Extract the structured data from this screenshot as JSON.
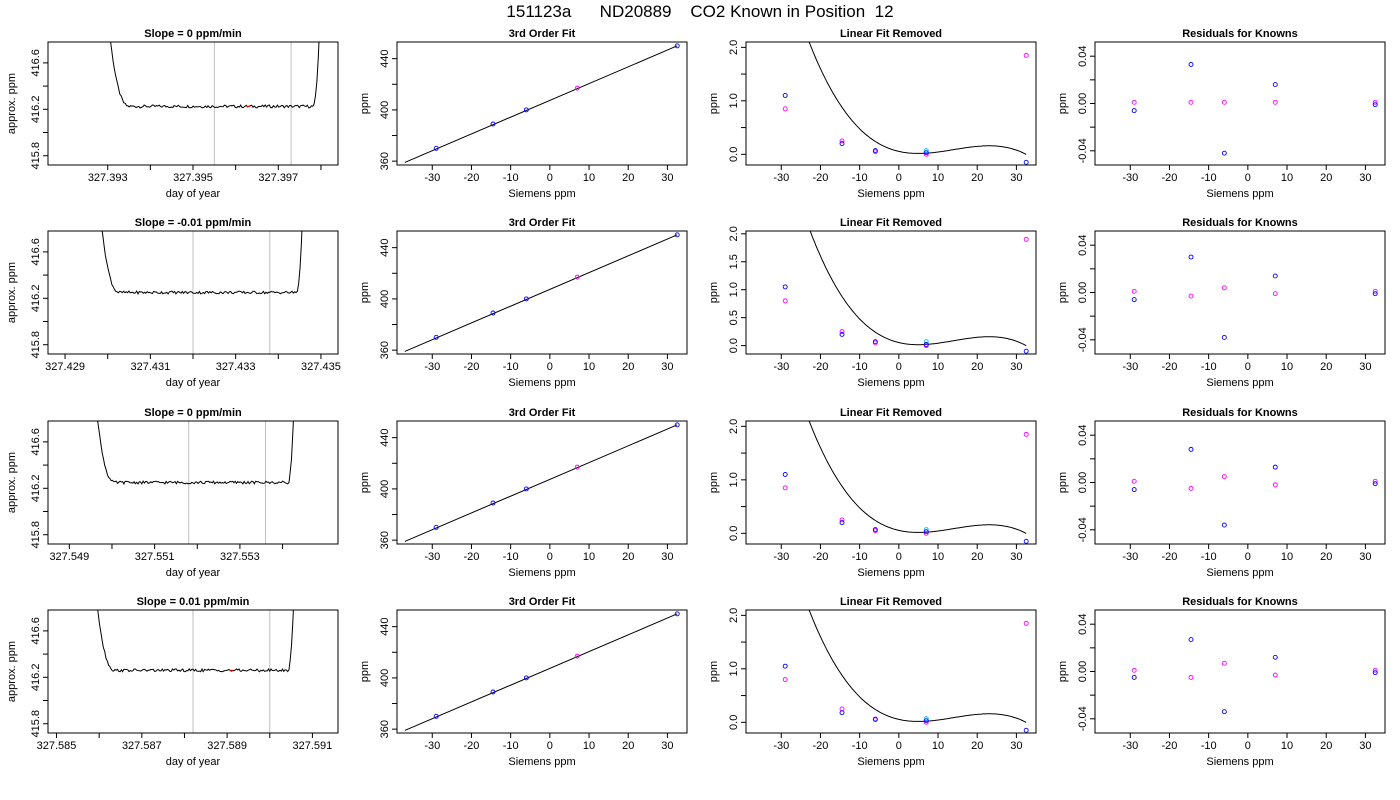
{
  "figure_title": "151123a      ND20889    CO2 Known in Position  12",
  "chart_data": [
    {
      "id": "r1c1",
      "type": "line",
      "title": "Slope =  0  ppm/min",
      "xlabel": "day of year",
      "ylabel": "approx. ppm",
      "xlim": [
        327.3916,
        327.3984
      ],
      "ylim": [
        415.72,
        416.78
      ],
      "xticks": [
        327.393,
        327.394,
        327.395,
        327.396,
        327.397,
        327.398
      ],
      "xtick_labels": [
        "327.393",
        "",
        "327.395",
        "",
        "327.397",
        ""
      ],
      "yticks": [
        415.8,
        416.0,
        416.2,
        416.4,
        416.6
      ],
      "ytick_labels": [
        "415.8",
        "",
        "416.2",
        "",
        "416.6"
      ],
      "vlines": [
        327.3955,
        327.3973
      ],
      "trace_start": 327.3929,
      "trace_end": 327.398,
      "baseline": 416.225,
      "red_mark": 327.3963,
      "colors": {
        "vline": "#bfbfbf",
        "trace": "#000000",
        "mark": "#ff0000"
      }
    },
    {
      "id": "r1c2",
      "type": "line",
      "title": "3rd Order Fit",
      "xlabel": "Siemens ppm",
      "ylabel": "ppm",
      "xlim": [
        -39,
        35
      ],
      "ylim": [
        357,
        453
      ],
      "xticks": [
        -30,
        -20,
        -10,
        0,
        10,
        20,
        30
      ],
      "xtick_labels": [
        "-30",
        "-20",
        "-10",
        "0",
        "10",
        "20",
        "30"
      ],
      "yticks": [
        360,
        380,
        400,
        420,
        440
      ],
      "ytick_labels": [
        "360",
        "",
        "400",
        "",
        "440"
      ],
      "line": [
        [
          -37,
          359
        ],
        [
          32.5,
          450
        ]
      ],
      "points_blue": [
        [
          -29,
          370
        ],
        [
          -14.5,
          389
        ],
        [
          -6,
          400
        ],
        [
          32.5,
          450
        ]
      ],
      "points_magenta": [
        [
          7,
          417
        ]
      ],
      "points_cyan": []
    },
    {
      "id": "r1c3",
      "type": "scatter",
      "title": "Linear Fit Removed",
      "xlabel": "Siemens ppm",
      "ylabel": "ppm",
      "xlim": [
        -39,
        35
      ],
      "ylim": [
        -0.2,
        2.1
      ],
      "xticks": [
        -30,
        -20,
        -10,
        0,
        10,
        20,
        30
      ],
      "xtick_labels": [
        "-30",
        "-20",
        "-10",
        "0",
        "10",
        "20",
        "30"
      ],
      "yticks": [
        0,
        0.5,
        1.0,
        1.5,
        2.0
      ],
      "ytick_labels": [
        "0.0",
        "",
        "1.0",
        "",
        "2.0"
      ],
      "curve": [
        -0.1484,
        0.0039,
        0.0036,
        0.0
      ],
      "points_blue": [
        [
          -29,
          1.1
        ],
        [
          -14.5,
          0.2
        ],
        [
          -6,
          0.07
        ],
        [
          7,
          0.03
        ],
        [
          32.5,
          -0.15
        ]
      ],
      "points_magenta": [
        [
          -29,
          0.85
        ],
        [
          -14.5,
          0.25
        ],
        [
          -6,
          0.05
        ],
        [
          7,
          0.0
        ],
        [
          32.5,
          1.85
        ]
      ],
      "points_cyan": [
        [
          7,
          0.07
        ]
      ]
    },
    {
      "id": "r1c4",
      "type": "scatter",
      "title": "Residuals for Knowns",
      "xlabel": "Siemens ppm",
      "ylabel": "ppm",
      "xlim": [
        -39,
        35
      ],
      "ylim": [
        -0.052,
        0.052
      ],
      "xticks": [
        -30,
        -20,
        -10,
        0,
        10,
        20,
        30
      ],
      "xtick_labels": [
        "-30",
        "-20",
        "-10",
        "0",
        "10",
        "20",
        "30"
      ],
      "yticks": [
        -0.04,
        -0.02,
        0,
        0.02,
        0.04
      ],
      "ytick_labels": [
        "-0.04",
        "",
        "0.00",
        "",
        "0.04"
      ],
      "points_blue": [
        [
          -29,
          -0.006
        ],
        [
          -14.5,
          0.033
        ],
        [
          -6,
          -0.042
        ],
        [
          7,
          0.016
        ],
        [
          32.5,
          -0.001
        ]
      ],
      "points_magenta": [
        [
          -29,
          0.001
        ],
        [
          -14.5,
          0.001
        ],
        [
          -6,
          0.001
        ],
        [
          7,
          0.001
        ],
        [
          32.5,
          0.001
        ]
      ],
      "points_cyan": []
    },
    {
      "id": "r2c1",
      "type": "line",
      "title": "Slope =  -0.01  ppm/min",
      "xlabel": "day of year",
      "ylabel": "approx. ppm",
      "xlim": [
        327.4286,
        327.4354
      ],
      "ylim": [
        415.72,
        416.78
      ],
      "xticks": [
        327.429,
        327.43,
        327.431,
        327.432,
        327.433,
        327.434,
        327.435
      ],
      "xtick_labels": [
        "327.429",
        "",
        "327.431",
        "",
        "327.433",
        "",
        "327.435"
      ],
      "yticks": [
        415.8,
        416.0,
        416.2,
        416.4,
        416.6
      ],
      "ytick_labels": [
        "415.8",
        "",
        "416.2",
        "",
        "416.6"
      ],
      "vlines": [
        327.432,
        327.4338
      ],
      "trace_start": 327.4297,
      "trace_end": 327.4346,
      "baseline": 416.25,
      "red_mark": null,
      "colors": {
        "vline": "#bfbfbf",
        "trace": "#000000",
        "mark": "#ff0000"
      }
    },
    {
      "id": "r2c2",
      "type": "line",
      "title": "3rd Order Fit",
      "xlabel": "Siemens ppm",
      "ylabel": "ppm",
      "xlim": [
        -39,
        35
      ],
      "ylim": [
        357,
        453
      ],
      "xticks": [
        -30,
        -20,
        -10,
        0,
        10,
        20,
        30
      ],
      "xtick_labels": [
        "-30",
        "-20",
        "-10",
        "0",
        "10",
        "20",
        "30"
      ],
      "yticks": [
        360,
        380,
        400,
        420,
        440
      ],
      "ytick_labels": [
        "360",
        "",
        "400",
        "",
        "440"
      ],
      "line": [
        [
          -37,
          359
        ],
        [
          32.5,
          450
        ]
      ],
      "points_blue": [
        [
          -29,
          370
        ],
        [
          -14.5,
          389
        ],
        [
          -6,
          400
        ],
        [
          32.5,
          450
        ]
      ],
      "points_magenta": [
        [
          7,
          417
        ]
      ],
      "points_cyan": []
    },
    {
      "id": "r2c3",
      "type": "scatter",
      "title": "Linear Fit Removed",
      "xlabel": "Siemens ppm",
      "ylabel": "ppm",
      "xlim": [
        -39,
        35
      ],
      "ylim": [
        -0.15,
        2.05
      ],
      "xticks": [
        -30,
        -20,
        -10,
        0,
        10,
        20,
        30
      ],
      "xtick_labels": [
        "-30",
        "-20",
        "-10",
        "0",
        "10",
        "20",
        "30"
      ],
      "yticks": [
        0,
        0.5,
        1.0,
        1.5,
        2.0
      ],
      "ytick_labels": [
        "0.0",
        "0.5",
        "1.0",
        "1.5",
        "2.0"
      ],
      "curve": [
        -0.1484,
        0.0039,
        0.0036,
        0.0
      ],
      "points_blue": [
        [
          -29,
          1.05
        ],
        [
          -14.5,
          0.2
        ],
        [
          -6,
          0.07
        ],
        [
          7,
          0.02
        ],
        [
          32.5,
          -0.1
        ]
      ],
      "points_magenta": [
        [
          -29,
          0.8
        ],
        [
          -14.5,
          0.25
        ],
        [
          -6,
          0.05
        ],
        [
          7,
          0.0
        ],
        [
          32.5,
          1.9
        ]
      ],
      "points_cyan": [
        [
          7,
          0.07
        ]
      ]
    },
    {
      "id": "r2c4",
      "type": "scatter",
      "title": "Residuals for Knowns",
      "xlabel": "Siemens ppm",
      "ylabel": "ppm",
      "xlim": [
        -39,
        35
      ],
      "ylim": [
        -0.052,
        0.052
      ],
      "xticks": [
        -30,
        -20,
        -10,
        0,
        10,
        20,
        30
      ],
      "xtick_labels": [
        "-30",
        "-20",
        "-10",
        "0",
        "10",
        "20",
        "30"
      ],
      "yticks": [
        -0.04,
        -0.02,
        0,
        0.02,
        0.04
      ],
      "ytick_labels": [
        "-0.04",
        "",
        "0.00",
        "",
        "0.04"
      ],
      "points_blue": [
        [
          -29,
          -0.006
        ],
        [
          -14.5,
          0.03
        ],
        [
          -6,
          -0.038
        ],
        [
          7,
          0.014
        ],
        [
          32.5,
          -0.001
        ]
      ],
      "points_magenta": [
        [
          -29,
          0.001
        ],
        [
          -14.5,
          -0.003
        ],
        [
          -6,
          0.004
        ],
        [
          7,
          -0.001
        ],
        [
          32.5,
          0.001
        ]
      ],
      "points_cyan": []
    },
    {
      "id": "r3c1",
      "type": "line",
      "title": "Slope =  0  ppm/min",
      "xlabel": "day of year",
      "ylabel": "approx. ppm",
      "xlim": [
        327.5485,
        327.5553
      ],
      "ylim": [
        415.72,
        416.78
      ],
      "xticks": [
        327.549,
        327.55,
        327.551,
        327.552,
        327.553,
        327.554
      ],
      "xtick_labels": [
        "327.549",
        "",
        "327.551",
        "",
        "327.553",
        ""
      ],
      "yticks": [
        415.8,
        416.0,
        416.2,
        416.4,
        416.6
      ],
      "ytick_labels": [
        "415.8",
        "",
        "416.2",
        "",
        "416.6"
      ],
      "vlines": [
        327.5518,
        327.5536
      ],
      "trace_start": 327.5495,
      "trace_end": 327.5543,
      "baseline": 416.25,
      "red_mark": null,
      "colors": {
        "vline": "#bfbfbf",
        "trace": "#000000",
        "mark": "#ff0000"
      }
    },
    {
      "id": "r3c2",
      "type": "line",
      "title": "3rd Order Fit",
      "xlabel": "Siemens ppm",
      "ylabel": "ppm",
      "xlim": [
        -39,
        35
      ],
      "ylim": [
        357,
        453
      ],
      "xticks": [
        -30,
        -20,
        -10,
        0,
        10,
        20,
        30
      ],
      "xtick_labels": [
        "-30",
        "-20",
        "-10",
        "0",
        "10",
        "20",
        "30"
      ],
      "yticks": [
        360,
        380,
        400,
        420,
        440
      ],
      "ytick_labels": [
        "360",
        "",
        "400",
        "",
        "440"
      ],
      "line": [
        [
          -37,
          359
        ],
        [
          32.5,
          450
        ]
      ],
      "points_blue": [
        [
          -29,
          370
        ],
        [
          -14.5,
          389
        ],
        [
          -6,
          400
        ],
        [
          32.5,
          450
        ]
      ],
      "points_magenta": [
        [
          7,
          417
        ]
      ],
      "points_cyan": []
    },
    {
      "id": "r3c3",
      "type": "scatter",
      "title": "Linear Fit Removed",
      "xlabel": "Siemens ppm",
      "ylabel": "ppm",
      "xlim": [
        -39,
        35
      ],
      "ylim": [
        -0.2,
        2.1
      ],
      "xticks": [
        -30,
        -20,
        -10,
        0,
        10,
        20,
        30
      ],
      "xtick_labels": [
        "-30",
        "-20",
        "-10",
        "0",
        "10",
        "20",
        "30"
      ],
      "yticks": [
        0,
        0.5,
        1.0,
        1.5,
        2.0
      ],
      "ytick_labels": [
        "0.0",
        "",
        "1.0",
        "",
        "2.0"
      ],
      "curve": [
        -0.1484,
        0.0039,
        0.0036,
        0.0
      ],
      "points_blue": [
        [
          -29,
          1.1
        ],
        [
          -14.5,
          0.2
        ],
        [
          -6,
          0.07
        ],
        [
          7,
          0.03
        ],
        [
          32.5,
          -0.15
        ]
      ],
      "points_magenta": [
        [
          -29,
          0.85
        ],
        [
          -14.5,
          0.25
        ],
        [
          -6,
          0.05
        ],
        [
          7,
          0.0
        ],
        [
          32.5,
          1.85
        ]
      ],
      "points_cyan": [
        [
          7,
          0.07
        ]
      ]
    },
    {
      "id": "r3c4",
      "type": "scatter",
      "title": "Residuals for Knowns",
      "xlabel": "Siemens ppm",
      "ylabel": "ppm",
      "xlim": [
        -39,
        35
      ],
      "ylim": [
        -0.052,
        0.052
      ],
      "xticks": [
        -30,
        -20,
        -10,
        0,
        10,
        20,
        30
      ],
      "xtick_labels": [
        "-30",
        "-20",
        "-10",
        "0",
        "10",
        "20",
        "30"
      ],
      "yticks": [
        -0.04,
        -0.02,
        0,
        0.02,
        0.04
      ],
      "ytick_labels": [
        "-0.04",
        "",
        "0.00",
        "",
        "0.04"
      ],
      "points_blue": [
        [
          -29,
          -0.006
        ],
        [
          -14.5,
          0.028
        ],
        [
          -6,
          -0.036
        ],
        [
          7,
          0.013
        ],
        [
          32.5,
          -0.001
        ]
      ],
      "points_magenta": [
        [
          -29,
          0.001
        ],
        [
          -14.5,
          -0.005
        ],
        [
          -6,
          0.005
        ],
        [
          7,
          -0.002
        ],
        [
          32.5,
          0.001
        ]
      ],
      "points_cyan": []
    },
    {
      "id": "r4c1",
      "type": "line",
      "title": "Slope =  0.01  ppm/min",
      "xlabel": "day of year",
      "ylabel": "approx. ppm",
      "xlim": [
        327.5848,
        327.5916
      ],
      "ylim": [
        415.72,
        416.78
      ],
      "xticks": [
        327.585,
        327.586,
        327.587,
        327.588,
        327.589,
        327.59,
        327.591
      ],
      "xtick_labels": [
        "327.585",
        "",
        "327.587",
        "",
        "327.589",
        "",
        "327.591"
      ],
      "yticks": [
        415.8,
        416.0,
        416.2,
        416.4,
        416.6
      ],
      "ytick_labels": [
        "415.8",
        "",
        "416.2",
        "",
        "416.6"
      ],
      "vlines": [
        327.5882,
        327.59
      ],
      "trace_start": 327.5858,
      "trace_end": 327.5906,
      "baseline": 416.26,
      "red_mark": 327.5891,
      "colors": {
        "vline": "#bfbfbf",
        "trace": "#000000",
        "mark": "#ff0000"
      }
    },
    {
      "id": "r4c2",
      "type": "line",
      "title": "3rd Order Fit",
      "xlabel": "Siemens ppm",
      "ylabel": "ppm",
      "xlim": [
        -39,
        35
      ],
      "ylim": [
        357,
        453
      ],
      "xticks": [
        -30,
        -20,
        -10,
        0,
        10,
        20,
        30
      ],
      "xtick_labels": [
        "-30",
        "-20",
        "-10",
        "0",
        "10",
        "20",
        "30"
      ],
      "yticks": [
        360,
        380,
        400,
        420,
        440
      ],
      "ytick_labels": [
        "360",
        "",
        "400",
        "",
        "440"
      ],
      "line": [
        [
          -37,
          359
        ],
        [
          32.5,
          450
        ]
      ],
      "points_blue": [
        [
          -29,
          370
        ],
        [
          -14.5,
          389
        ],
        [
          -6,
          400
        ],
        [
          32.5,
          450
        ]
      ],
      "points_magenta": [
        [
          7,
          417
        ]
      ],
      "points_cyan": []
    },
    {
      "id": "r4c3",
      "type": "scatter",
      "title": "Linear Fit Removed",
      "xlabel": "Siemens ppm",
      "ylabel": "ppm",
      "xlim": [
        -39,
        35
      ],
      "ylim": [
        -0.2,
        2.1
      ],
      "xticks": [
        -30,
        -20,
        -10,
        0,
        10,
        20,
        30
      ],
      "xtick_labels": [
        "-30",
        "-20",
        "-10",
        "0",
        "10",
        "20",
        "30"
      ],
      "yticks": [
        0,
        0.5,
        1.0,
        1.5,
        2.0
      ],
      "ytick_labels": [
        "0.0",
        "",
        "1.0",
        "",
        "2.0"
      ],
      "curve": [
        -0.1484,
        0.0039,
        0.0036,
        0.0
      ],
      "points_blue": [
        [
          -29,
          1.05
        ],
        [
          -14.5,
          0.18
        ],
        [
          -6,
          0.06
        ],
        [
          7,
          0.03
        ],
        [
          32.5,
          -0.15
        ]
      ],
      "points_magenta": [
        [
          -29,
          0.8
        ],
        [
          -14.5,
          0.25
        ],
        [
          -6,
          0.05
        ],
        [
          7,
          0.0
        ],
        [
          32.5,
          1.85
        ]
      ],
      "points_cyan": [
        [
          7,
          0.07
        ]
      ]
    },
    {
      "id": "r4c4",
      "type": "scatter",
      "title": "Residuals for Knowns",
      "xlabel": "Siemens ppm",
      "ylabel": "ppm",
      "xlim": [
        -39,
        35
      ],
      "ylim": [
        -0.052,
        0.052
      ],
      "xticks": [
        -30,
        -20,
        -10,
        0,
        10,
        20,
        30
      ],
      "xtick_labels": [
        "-30",
        "-20",
        "-10",
        "0",
        "10",
        "20",
        "30"
      ],
      "yticks": [
        -0.04,
        -0.02,
        0,
        0.02,
        0.04
      ],
      "ytick_labels": [
        "-0.04",
        "",
        "0.00",
        "",
        "0.04"
      ],
      "points_blue": [
        [
          -29,
          -0.005
        ],
        [
          -14.5,
          0.027
        ],
        [
          -6,
          -0.034
        ],
        [
          7,
          0.012
        ],
        [
          32.5,
          -0.001
        ]
      ],
      "points_magenta": [
        [
          -29,
          0.001
        ],
        [
          -14.5,
          -0.005
        ],
        [
          -6,
          0.007
        ],
        [
          7,
          -0.003
        ],
        [
          32.5,
          0.001
        ]
      ],
      "points_cyan": []
    }
  ]
}
